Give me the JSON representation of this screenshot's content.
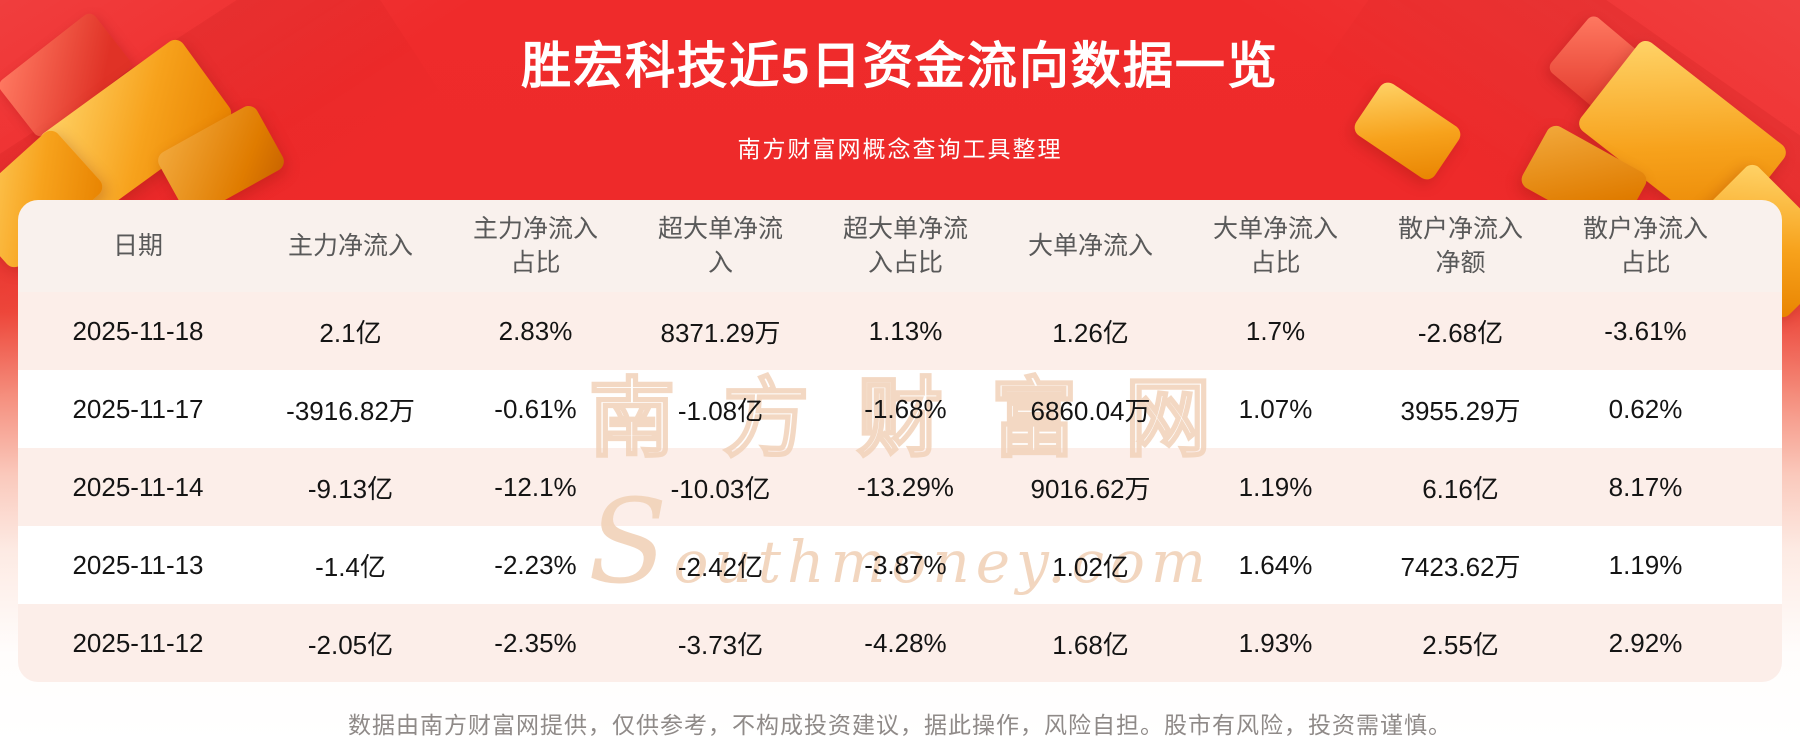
{
  "header": {
    "title": "胜宏科技近5日资金流向数据一览",
    "subtitle": "南方财富网概念查询工具整理"
  },
  "chart_data": {
    "type": "table",
    "title": "胜宏科技近5日资金流向数据一览",
    "columns": [
      "日期",
      "主力净流入",
      "主力净流入占比",
      "超大单净流入",
      "超大单净流入占比",
      "大单净流入",
      "大单净流入占比",
      "散户净流入净额",
      "散户净流入占比"
    ],
    "rows": [
      [
        "2025-11-18",
        "2.1亿",
        "2.83%",
        "8371.29万",
        "1.13%",
        "1.26亿",
        "1.7%",
        "-2.68亿",
        "-3.61%"
      ],
      [
        "2025-11-17",
        "-3916.82万",
        "-0.61%",
        "-1.08亿",
        "-1.68%",
        "6860.04万",
        "1.07%",
        "3955.29万",
        "0.62%"
      ],
      [
        "2025-11-14",
        "-9.13亿",
        "-12.1%",
        "-10.03亿",
        "-13.29%",
        "9016.62万",
        "1.19%",
        "6.16亿",
        "8.17%"
      ],
      [
        "2025-11-13",
        "-1.4亿",
        "-2.23%",
        "-2.42亿",
        "-3.87%",
        "1.02亿",
        "1.64%",
        "7423.62万",
        "1.19%"
      ],
      [
        "2025-11-12",
        "-2.05亿",
        "-2.35%",
        "-3.73亿",
        "-4.28%",
        "1.68亿",
        "1.93%",
        "2.55亿",
        "2.92%"
      ]
    ]
  },
  "watermark": {
    "line1": "南方财富网",
    "line2": "Southmoney.com"
  },
  "footer": {
    "disclaimer": "数据由南方财富网提供，仅供参考，不构成投资建议，据此操作，风险自担。股市有风险，投资需谨慎。"
  },
  "colors": {
    "banner_red": "#ef2b2b",
    "row_stripe": "#fceee9",
    "watermark_beige": "#f1d1b8"
  }
}
